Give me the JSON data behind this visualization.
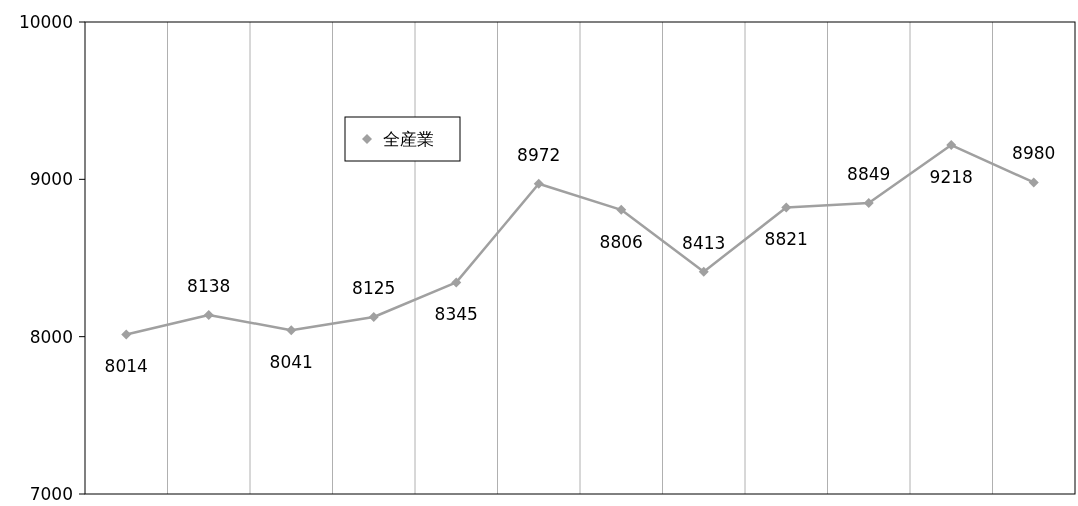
{
  "chart_data": {
    "type": "line",
    "categories": [
      null,
      null,
      null,
      null,
      null,
      null,
      null,
      null,
      null,
      null,
      null,
      null
    ],
    "series": [
      {
        "name": "全産業",
        "color": "#a0a0a0",
        "values": [
          8014,
          8138,
          8041,
          8125,
          8345,
          8972,
          8806,
          8413,
          8821,
          8849,
          9218,
          8980
        ]
      }
    ],
    "ylim": [
      7000,
      10000
    ],
    "yticks": [
      7000,
      8000,
      9000,
      10000
    ],
    "grid": "x",
    "legend": "top left",
    "marker": "diamond",
    "line_style": "solid",
    "data_labels": true
  }
}
